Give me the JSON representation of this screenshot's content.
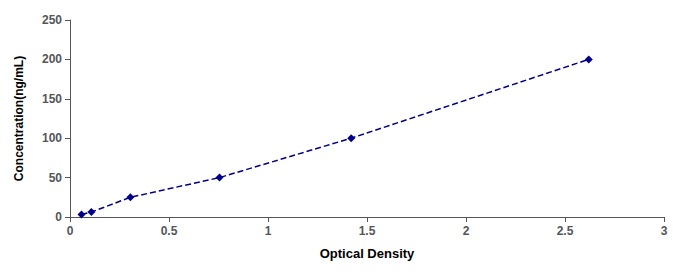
{
  "chart_data": {
    "type": "line",
    "x": [
      0.058,
      0.108,
      0.305,
      0.755,
      1.42,
      2.62
    ],
    "values": [
      3.13,
      6.25,
      25,
      50,
      100,
      200
    ],
    "xlim": [
      0,
      3
    ],
    "ylim": [
      0,
      250
    ],
    "xticks": [
      0,
      0.5,
      1,
      1.5,
      2,
      2.5,
      3
    ],
    "yticks": [
      0,
      50,
      100,
      150,
      200,
      250
    ],
    "xlabel": "Optical Density",
    "ylabel": "Concentration(ng/mL)",
    "color": "#00008B",
    "marker": "diamond",
    "line_style": "dashed",
    "grid": false
  }
}
